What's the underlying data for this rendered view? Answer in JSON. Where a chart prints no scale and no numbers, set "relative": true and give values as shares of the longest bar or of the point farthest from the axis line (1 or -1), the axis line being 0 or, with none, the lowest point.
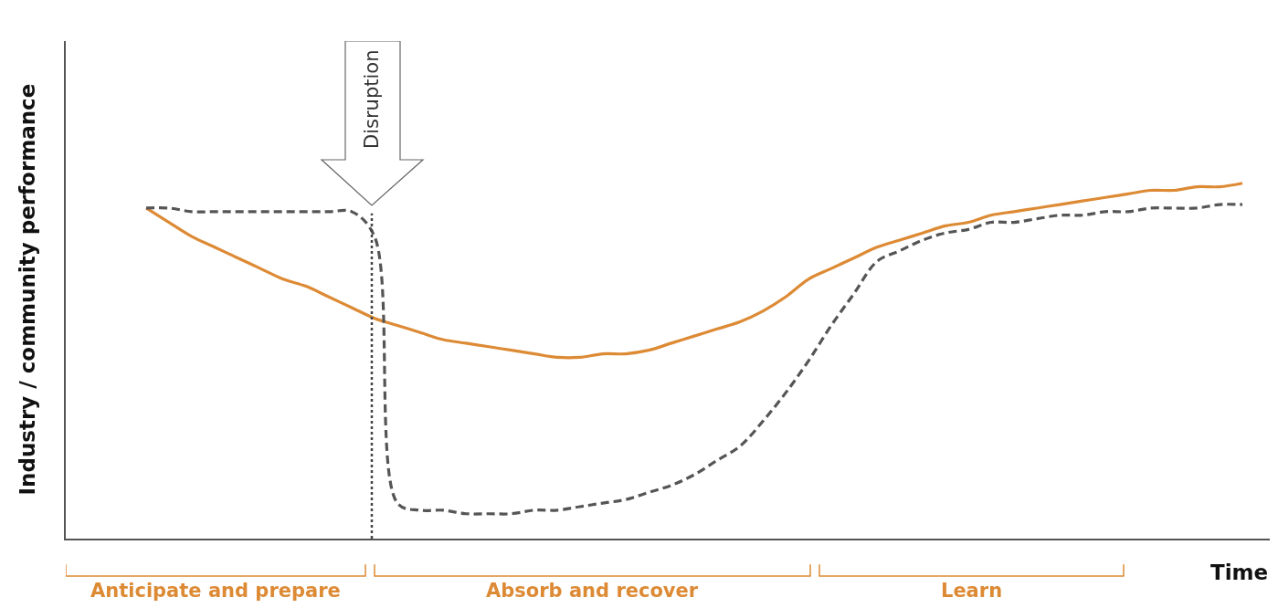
{
  "chart_data": {
    "type": "line",
    "relative": true,
    "xlabel": "Time",
    "ylabel": "Industry / community performance",
    "categories": [
      null,
      null,
      null,
      null,
      null,
      null,
      null,
      null,
      null,
      null,
      null,
      null,
      null,
      null,
      null,
      null,
      null,
      null,
      null,
      null,
      null,
      null,
      null,
      null,
      null,
      null,
      null,
      null,
      null,
      null,
      null,
      null,
      null,
      null,
      null,
      null,
      null,
      null,
      null,
      null,
      null,
      null,
      null,
      null,
      null,
      null,
      null,
      null,
      null
    ],
    "series": [
      {
        "color": "#dd8a35",
        "line_style": "solid",
        "values": [
          0.93,
          0.89,
          0.85,
          0.82,
          0.79,
          0.76,
          0.73,
          0.71,
          0.68,
          0.65,
          0.62,
          0.6,
          0.58,
          0.56,
          0.55,
          0.54,
          0.53,
          0.52,
          0.51,
          0.51,
          0.52,
          0.52,
          0.53,
          0.55,
          0.57,
          0.59,
          0.61,
          0.64,
          0.68,
          0.73,
          0.76,
          0.79,
          0.82,
          0.84,
          0.86,
          0.88,
          0.89,
          0.91,
          0.92,
          0.93,
          0.94,
          0.95,
          0.96,
          0.97,
          0.98,
          0.98,
          0.99,
          0.99,
          1
        ]
      },
      {
        "color": "#555555",
        "line_style": "dashed",
        "values": [
          0.93,
          0.93,
          0.92,
          0.92,
          0.92,
          0.92,
          0.92,
          0.92,
          0.92,
          0.92,
          0.85,
          0.1,
          0.08,
          0.08,
          0.07,
          0.07,
          0.07,
          0.08,
          0.08,
          0.09,
          0.1,
          0.11,
          0.13,
          0.15,
          0.18,
          0.22,
          0.26,
          0.33,
          0.41,
          0.5,
          0.6,
          0.69,
          0.78,
          0.81,
          0.84,
          0.86,
          0.87,
          0.89,
          0.89,
          0.9,
          0.91,
          0.91,
          0.92,
          0.92,
          0.93,
          0.93,
          0.93,
          0.94,
          0.94
        ]
      }
    ],
    "annotations": [
      "Disruption",
      "Anticipate and prepare",
      "Absorb and recover",
      "Learn"
    ],
    "marker": "none"
  }
}
